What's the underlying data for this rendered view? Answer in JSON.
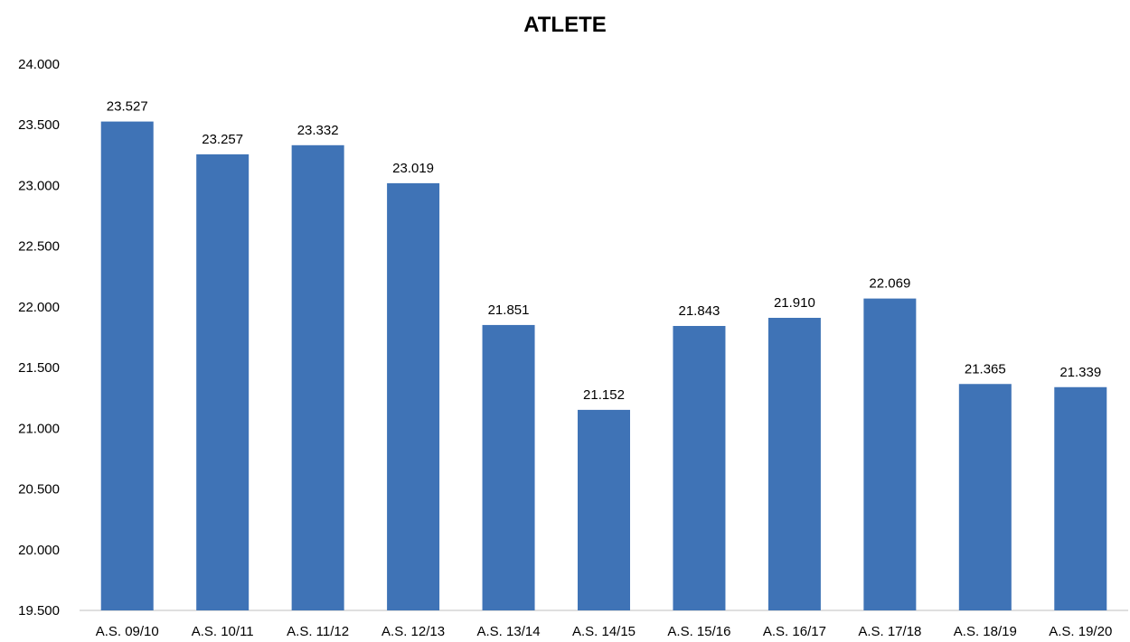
{
  "chart_data": {
    "type": "bar",
    "title": "ATLETE",
    "categories": [
      "A.S. 09/10",
      "A.S. 10/11",
      "A.S. 11/12",
      "A.S. 12/13",
      "A.S. 13/14",
      "A.S. 14/15",
      "A.S. 15/16",
      "A.S. 16/17",
      "A.S. 17/18",
      "A.S. 18/19",
      "A.S. 19/20"
    ],
    "values": [
      23527,
      23257,
      23332,
      23019,
      21851,
      21152,
      21843,
      21910,
      22069,
      21365,
      21339
    ],
    "value_labels": [
      "23.527",
      "23.257",
      "23.332",
      "23.019",
      "21.851",
      "21.152",
      "21.843",
      "21.910",
      "22.069",
      "21.365",
      "21.339"
    ],
    "ylim": [
      19500,
      24000
    ],
    "yticks": [
      19500,
      20000,
      20500,
      21000,
      21500,
      22000,
      22500,
      23000,
      23500,
      24000
    ],
    "ytick_labels": [
      "19.500",
      "20.000",
      "20.500",
      "21.000",
      "21.500",
      "22.000",
      "22.500",
      "23.000",
      "23.500",
      "24.000"
    ],
    "xlabel": "",
    "ylabel": "",
    "grid": false,
    "legend": "none",
    "bar_color": "#3f73b6"
  }
}
